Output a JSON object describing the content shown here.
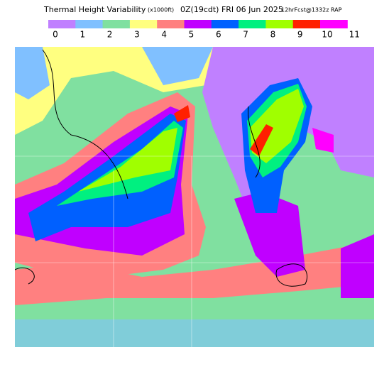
{
  "header": {
    "title": "Thermal Height Variability",
    "units": "(x1000ft)",
    "valid": "0Z(19cdt) FRI 06 Jun 2025",
    "forecast": "12hrFcst@1332z RAP"
  },
  "legend": {
    "labels": [
      "0",
      "1",
      "2",
      "3",
      "4",
      "5",
      "6",
      "7",
      "8",
      "9",
      "10",
      "11"
    ],
    "colors": [
      "#c080ff",
      "#80c0ff",
      "#80e0a0",
      "#ffff80",
      "#ff8080",
      "#c000ff",
      "#0060ff",
      "#00f080",
      "#a0ff00",
      "#ff2000",
      "#ff00ff"
    ]
  }
}
